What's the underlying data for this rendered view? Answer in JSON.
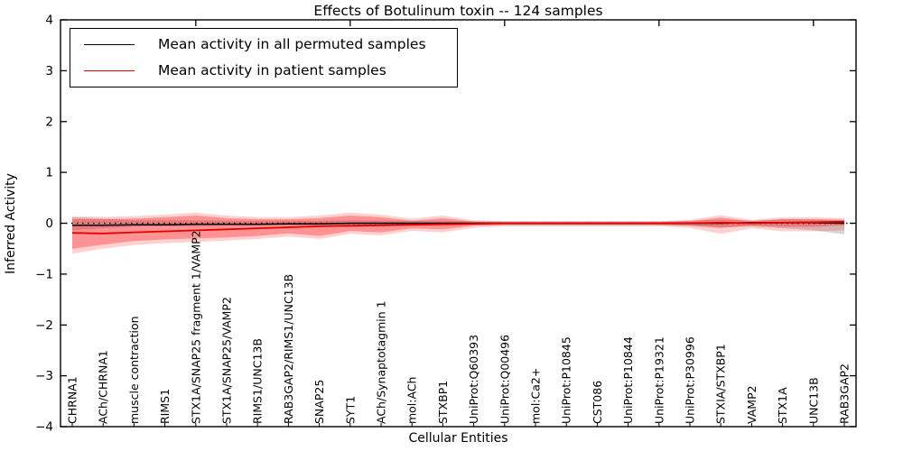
{
  "chart_data": {
    "type": "line",
    "title": "Effects of Botulinum toxin -- 124 samples",
    "xlabel": "Cellular Entities",
    "ylabel": "Inferred Activity",
    "ylim": [
      -4,
      4
    ],
    "yticks": [
      -4,
      -3,
      -2,
      -1,
      0,
      1,
      2,
      3,
      4
    ],
    "grid": false,
    "legend_position": "upper left",
    "background_color": "#ffffff",
    "axis_color": "#000000",
    "categories": [
      "CHRNA1",
      "ACh/CHRNA1",
      "muscle contraction",
      "RIMS1",
      "STX1A/SNAP25 fragment 1/VAMP2",
      "STX1A/SNAP25/VAMP2",
      "RIMS1/UNC13B",
      "RAB3GAP2/RIMS1/UNC13B",
      "SNAP25",
      "SYT1",
      "ACh/Synaptotagmin 1",
      "mol:ACh",
      "STXBP1",
      "UniProt:Q60393",
      "UniProt:Q00496",
      "mol:Ca2+",
      "UniProt:P10845",
      "CST086",
      "UniProt:P10844",
      "UniProt:P19321",
      "UniProt:P30996",
      "STXIA/STXBP1",
      "VAMP2",
      "STX1A",
      "UNC13B",
      "RAB3GAP2"
    ],
    "series": [
      {
        "name": "Mean activity in all permuted samples",
        "color": "#000000",
        "line_width": 1.5,
        "values": [
          -0.04,
          -0.04,
          -0.03,
          -0.03,
          -0.02,
          -0.02,
          -0.02,
          -0.01,
          -0.01,
          0,
          0,
          0,
          0,
          0,
          0,
          0,
          0,
          0,
          0,
          0,
          0,
          0,
          0.01,
          0.01,
          0.01,
          0
        ]
      },
      {
        "name": "Mean activity in patient samples",
        "color": "#e60000",
        "line_width": 1.8,
        "values": [
          -0.19,
          -0.2,
          -0.18,
          -0.16,
          -0.14,
          -0.12,
          -0.1,
          -0.08,
          -0.06,
          -0.05,
          -0.04,
          -0.03,
          -0.02,
          -0.01,
          0,
          0,
          0,
          0,
          0,
          0,
          0,
          0.01,
          0,
          0.01,
          0.02,
          0.03
        ]
      }
    ],
    "bands": [
      {
        "name": "permuted-confidence-band",
        "color": "rgba(0,0,0,0.16)",
        "upper": [
          0.12,
          0.09,
          0.06,
          0.06,
          0.06,
          0.05,
          0.05,
          0.05,
          0.05,
          0.06,
          0.05,
          0.05,
          0.05,
          0.04,
          0.04,
          0.04,
          0.04,
          0.04,
          0.04,
          0.04,
          0.05,
          0.07,
          0.05,
          0.08,
          0.07,
          0.06
        ],
        "lower": [
          -0.14,
          -0.1,
          -0.07,
          -0.06,
          -0.06,
          -0.05,
          -0.05,
          -0.05,
          -0.05,
          -0.06,
          -0.05,
          -0.05,
          -0.05,
          -0.04,
          -0.04,
          -0.04,
          -0.04,
          -0.04,
          -0.04,
          -0.04,
          -0.05,
          -0.08,
          -0.06,
          -0.1,
          -0.14,
          -0.22
        ]
      },
      {
        "name": "patient-confidence-band-outer",
        "color": "rgba(255,0,0,0.18)",
        "upper": [
          0.14,
          0.13,
          0.14,
          0.17,
          0.21,
          0.15,
          0.12,
          0.12,
          0.15,
          0.21,
          0.17,
          0.09,
          0.15,
          0.06,
          0.04,
          0.04,
          0.04,
          0.04,
          0.04,
          0.04,
          0.07,
          0.16,
          0.07,
          0.12,
          0.12,
          0.1
        ],
        "lower": [
          -0.6,
          -0.5,
          -0.43,
          -0.39,
          -0.37,
          -0.34,
          -0.31,
          -0.26,
          -0.31,
          -0.21,
          -0.24,
          -0.15,
          -0.18,
          -0.09,
          -0.06,
          -0.06,
          -0.06,
          -0.06,
          -0.06,
          -0.06,
          -0.09,
          -0.21,
          -0.1,
          -0.16,
          -0.16,
          -0.14
        ],
        "legend": null
      },
      {
        "name": "patient-confidence-band-inner",
        "color": "rgba(255,0,0,0.30)",
        "upper": [
          0.08,
          0.08,
          0.09,
          0.12,
          0.15,
          0.1,
          0.08,
          0.08,
          0.1,
          0.15,
          0.12,
          0.05,
          0.1,
          0.03,
          0.02,
          0.02,
          0.02,
          0.02,
          0.02,
          0.02,
          0.04,
          0.11,
          0.04,
          0.08,
          0.08,
          0.07
        ],
        "lower": [
          -0.5,
          -0.42,
          -0.35,
          -0.32,
          -0.3,
          -0.28,
          -0.25,
          -0.2,
          -0.25,
          -0.15,
          -0.18,
          -0.1,
          -0.12,
          -0.05,
          -0.03,
          -0.03,
          -0.03,
          -0.03,
          -0.03,
          -0.03,
          -0.05,
          -0.09,
          -0.05,
          -0.07,
          -0.07,
          -0.04
        ]
      }
    ],
    "reference_line": {
      "value": 0,
      "style": "dotted",
      "color": "#000000"
    },
    "top_tick_categories": [
      "STX1A/SNAP25 fragment 1/VAMP2",
      "SYT1",
      "UniProt:Q00496",
      "UniProt:P19321",
      "UNC13B"
    ]
  },
  "legend": {
    "items": [
      {
        "label": "Mean activity in all permuted samples",
        "color": "#000000"
      },
      {
        "label": "Mean activity in patient samples",
        "color": "#e60000"
      }
    ]
  }
}
